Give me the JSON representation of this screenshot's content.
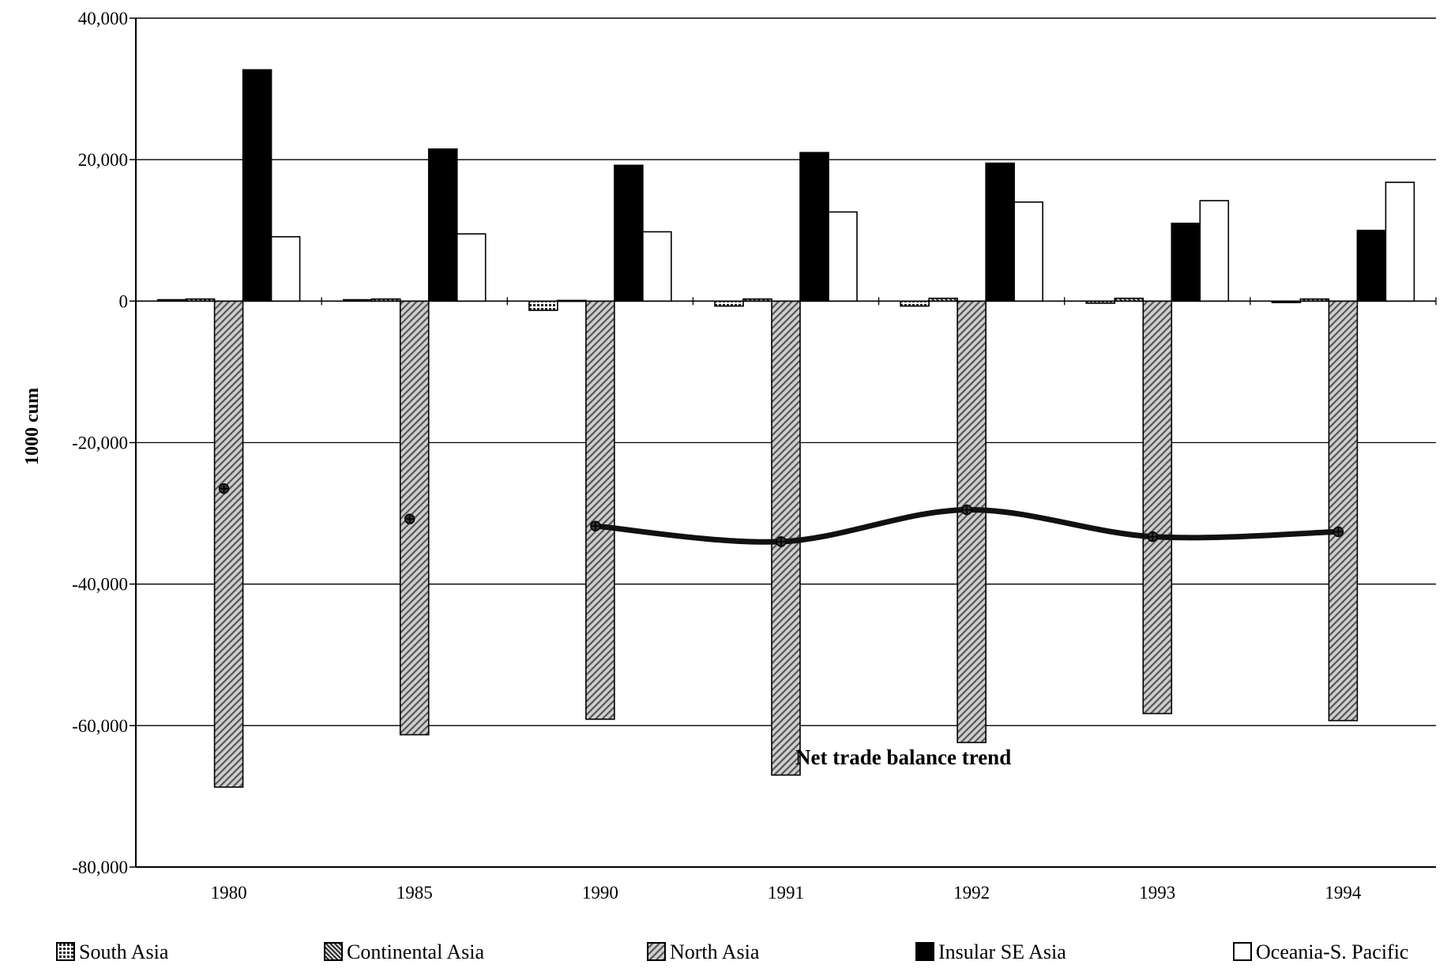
{
  "chart_data": {
    "type": "bar",
    "title": "",
    "xlabel": "",
    "ylabel": "1000 cum",
    "ylim": [
      -80000,
      40000
    ],
    "yticks": [
      40000,
      20000,
      0,
      -20000,
      -40000,
      -60000,
      -80000
    ],
    "ytick_labels": [
      "40,000",
      "20,000",
      "0",
      "-20,000",
      "-40,000",
      "-60,000",
      "-80,000"
    ],
    "grid": true,
    "legend_position": "bottom",
    "categories": [
      "1980",
      "1985",
      "1990",
      "1991",
      "1992",
      "1993",
      "1994"
    ],
    "series": [
      {
        "name": "South Asia",
        "pattern": "crosshatch",
        "values": [
          200,
          200,
          -1300,
          -700,
          -700,
          -300,
          -200
        ]
      },
      {
        "name": "Continental Asia",
        "pattern": "dense-hatch",
        "values": [
          300,
          300,
          100,
          300,
          400,
          400,
          300
        ]
      },
      {
        "name": "North Asia",
        "pattern": "diagonal-hatch",
        "values": [
          -68700,
          -61300,
          -59100,
          -67000,
          -62400,
          -58300,
          -59300
        ]
      },
      {
        "name": "Insular SE Asia",
        "pattern": "solid",
        "color": "#000000",
        "values": [
          32700,
          21500,
          19200,
          21000,
          19500,
          11000,
          10000
        ]
      },
      {
        "name": "Oceania-S. Pacific",
        "pattern": "hollow",
        "color": "#ffffff",
        "values": [
          9100,
          9500,
          9800,
          12600,
          14000,
          14200,
          16800
        ]
      }
    ],
    "trend": {
      "label": "Net trade balance trend",
      "values": [
        -26500,
        -30800,
        -31800,
        -34000,
        -29500,
        -33300,
        -32600
      ],
      "line_from_index": 2
    }
  }
}
